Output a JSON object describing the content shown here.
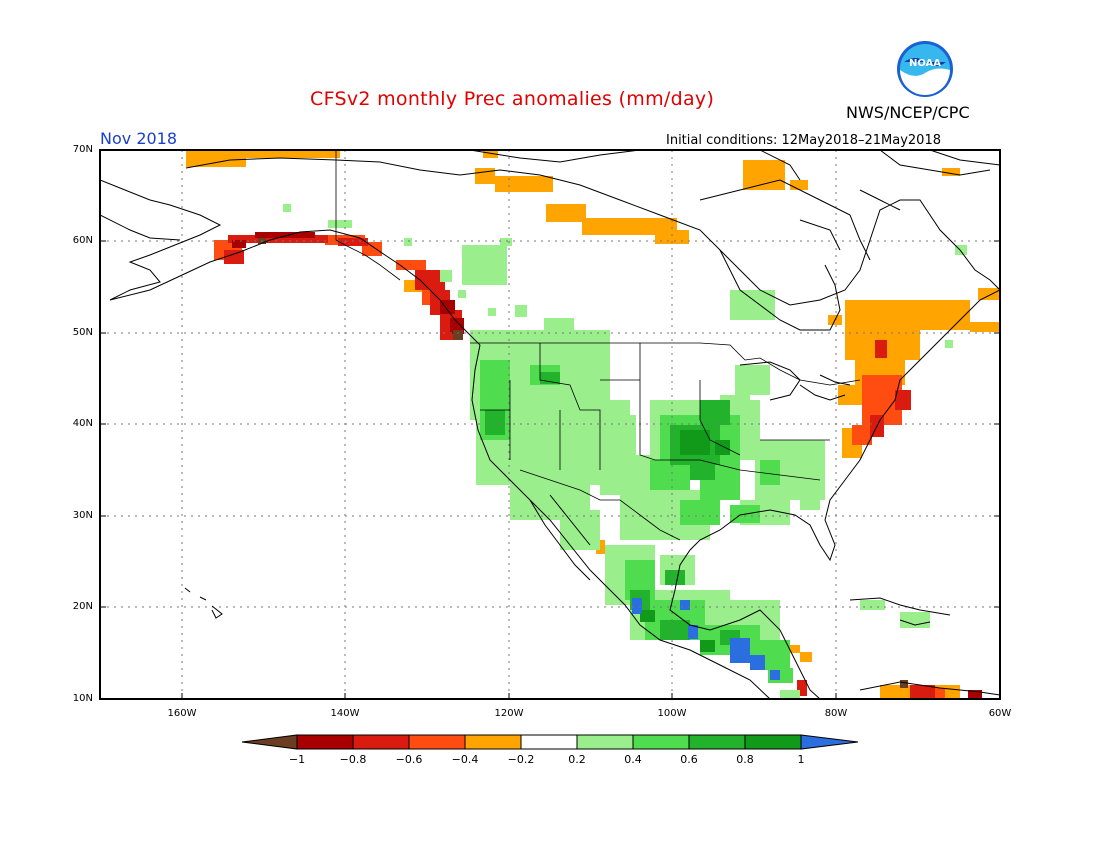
{
  "header": {
    "title": "CFSv2 monthly Prec anomalies (mm/day)",
    "agency": "NWS/NCEP/CPC",
    "logo_text": "NOAA",
    "month": "Nov 2018",
    "initial_conditions": "Initial conditions: 12May2018–21May2018"
  },
  "map": {
    "lat_labels": [
      "70N",
      "60N",
      "50N",
      "40N",
      "30N",
      "20N",
      "10N"
    ],
    "lon_labels": [
      "160W",
      "140W",
      "120W",
      "100W",
      "80W",
      "60W"
    ],
    "lat_range": [
      10,
      70
    ],
    "lon_range": [
      -170,
      -60
    ]
  },
  "colorbar": {
    "ticks": [
      "−1",
      "−0.8",
      "−0.6",
      "−0.4",
      "−0.2",
      "0.2",
      "0.4",
      "0.6",
      "0.8",
      "1"
    ],
    "colors": {
      "lt_minus1": "#6b3d22",
      "m1_m08": "#a80000",
      "m08_m06": "#d91b10",
      "m06_m04": "#ff4d12",
      "m04_m02": "#ffa400",
      "m02_02": "#ffffff",
      "p02_04": "#9aee8c",
      "p04_06": "#4fdc4f",
      "p06_08": "#22b22c",
      "p08_1": "#119a1a",
      "gt_1": "#2a6ee0"
    }
  }
}
